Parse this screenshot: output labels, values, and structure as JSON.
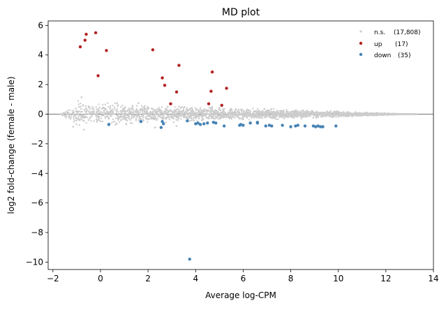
{
  "chart_data": {
    "type": "scatter",
    "title": "MD plot",
    "xlabel": "Average log-CPM",
    "ylabel": "log2 fold-change (female - male)",
    "xlim": [
      -2.2,
      14
    ],
    "ylim": [
      -10.5,
      6.3
    ],
    "xticks": [
      -2,
      0,
      2,
      4,
      6,
      8,
      10,
      12,
      14
    ],
    "yticks": [
      6,
      4,
      2,
      0,
      -2,
      -4,
      -6,
      -8,
      -10
    ],
    "reference_line_y": 0,
    "legend_position": "top-right",
    "series": [
      {
        "name": "n.s.",
        "count_label": "(17,808)",
        "color": "#cccccc",
        "description": "dense band of ~17,808 non-significant genes, x from -1.7 to 13.3, |y| mostly < 1",
        "envelope": [
          [
            -1.7,
            0.0
          ],
          [
            -0.9,
            1.1
          ],
          [
            0.0,
            1.0
          ],
          [
            2.0,
            0.7
          ],
          [
            4.0,
            0.6
          ],
          [
            6.0,
            0.45
          ],
          [
            8.0,
            0.35
          ],
          [
            10.0,
            0.25
          ],
          [
            11.0,
            0.15
          ],
          [
            13.3,
            0.0
          ]
        ],
        "points": [
          [
            -1.65,
            0.0
          ],
          [
            -1.15,
            -0.85
          ],
          [
            -1.0,
            0.2
          ],
          [
            -0.8,
            1.15
          ],
          [
            -0.7,
            -1.05
          ],
          [
            13.3,
            0.0
          ],
          [
            0.7,
            0.75
          ],
          [
            1.6,
            0.75
          ],
          [
            2.3,
            -0.9
          ],
          [
            3.2,
            -0.8
          ]
        ]
      },
      {
        "name": "up",
        "count_label": "(17)",
        "color": "#b22222",
        "points": [
          [
            -0.2,
            5.5
          ],
          [
            -0.6,
            5.4
          ],
          [
            -0.65,
            5.0
          ],
          [
            -0.85,
            4.55
          ],
          [
            0.25,
            4.3
          ],
          [
            2.2,
            4.35
          ],
          [
            -0.1,
            2.6
          ],
          [
            3.3,
            3.3
          ],
          [
            2.6,
            2.45
          ],
          [
            4.7,
            2.85
          ],
          [
            2.7,
            1.95
          ],
          [
            5.3,
            1.75
          ],
          [
            4.65,
            1.55
          ],
          [
            3.2,
            1.5
          ],
          [
            4.55,
            0.7
          ],
          [
            5.1,
            0.6
          ],
          [
            2.95,
            0.7
          ]
        ]
      },
      {
        "name": "down",
        "count_label": "(35)",
        "color": "#4682b4",
        "points": [
          [
            0.35,
            -0.7
          ],
          [
            1.7,
            -0.5
          ],
          [
            2.55,
            -0.9
          ],
          [
            2.6,
            -0.5
          ],
          [
            2.65,
            -0.65
          ],
          [
            3.65,
            -0.45
          ],
          [
            4.0,
            -0.65
          ],
          [
            4.1,
            -0.6
          ],
          [
            4.2,
            -0.7
          ],
          [
            4.35,
            -0.65
          ],
          [
            4.5,
            -0.6
          ],
          [
            4.75,
            -0.55
          ],
          [
            5.2,
            -0.8
          ],
          [
            5.9,
            -0.7
          ],
          [
            6.0,
            -0.75
          ],
          [
            6.3,
            -0.6
          ],
          [
            6.6,
            -0.55
          ],
          [
            6.95,
            -0.8
          ],
          [
            7.2,
            -0.8
          ],
          [
            7.65,
            -0.75
          ],
          [
            8.0,
            -0.85
          ],
          [
            8.2,
            -0.8
          ],
          [
            8.3,
            -0.75
          ],
          [
            8.6,
            -0.8
          ],
          [
            8.95,
            -0.8
          ],
          [
            9.05,
            -0.85
          ],
          [
            9.15,
            -0.8
          ],
          [
            9.25,
            -0.85
          ],
          [
            9.35,
            -0.85
          ],
          [
            9.9,
            -0.8
          ],
          [
            7.1,
            -0.75
          ],
          [
            5.85,
            -0.75
          ],
          [
            6.6,
            -0.6
          ],
          [
            4.85,
            -0.6
          ],
          [
            3.75,
            -9.8
          ]
        ]
      }
    ]
  }
}
